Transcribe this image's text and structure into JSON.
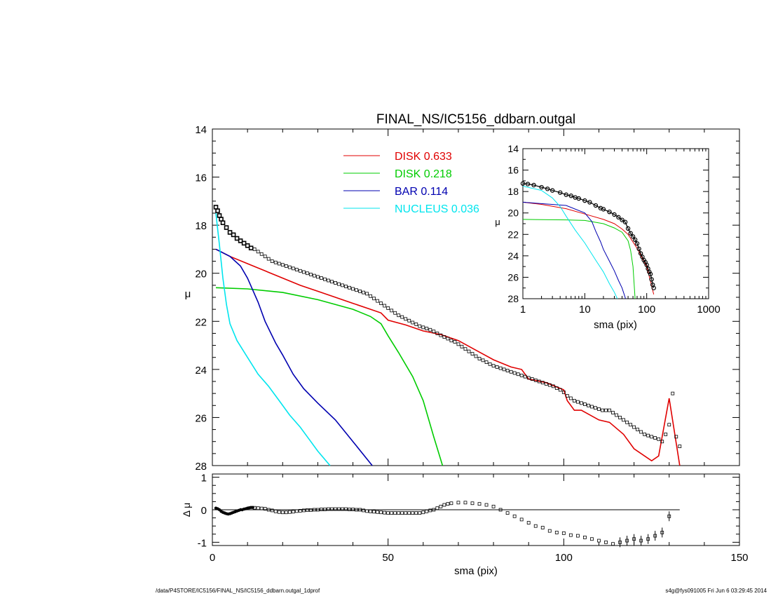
{
  "footer": {
    "left": "/data/P4STORE/IC5156/FINAL_NS/IC5156_ddbarn.outgal_1dprof",
    "right": "s4g@fys091005  Fri Jun  6 03:29:45 2014"
  },
  "chart_data": [
    {
      "id": "main",
      "type": "line",
      "title": "FINAL_NS/IC5156_ddbarn.outgal",
      "xlabel": "",
      "ylabel": "μ",
      "xlim": [
        0,
        150
      ],
      "ylim": [
        28,
        14
      ],
      "y_inverted": true,
      "yticks": [
        14,
        16,
        18,
        20,
        22,
        24,
        26,
        28
      ],
      "xticks": [
        0,
        50,
        100,
        150
      ],
      "show_x_tick_labels": false,
      "grid": false,
      "legend_position": "top-center",
      "legend": [
        {
          "name": "DISK",
          "value": "0.633",
          "color": "#e00000"
        },
        {
          "name": "DISK",
          "value": "0.218",
          "color": "#00cc00"
        },
        {
          "name": "BAR",
          "value": "0.114",
          "color": "#0000b0"
        },
        {
          "name": "NUCLEUS",
          "value": "0.036",
          "color": "#00e5ee"
        }
      ],
      "series": [
        {
          "name": "DISK",
          "color": "#e00000",
          "x": [
            1,
            5,
            10,
            15,
            20,
            25,
            30,
            35,
            40,
            45,
            48,
            50,
            55,
            60,
            65,
            70,
            75,
            80,
            85,
            88,
            90,
            95,
            100,
            101,
            103,
            105,
            110,
            113,
            117,
            120,
            125,
            127,
            130,
            133
          ],
          "y": [
            19.0,
            19.3,
            19.6,
            19.9,
            20.2,
            20.5,
            20.75,
            21.0,
            21.25,
            21.5,
            21.65,
            21.95,
            22.15,
            22.4,
            22.55,
            22.8,
            23.2,
            23.6,
            23.9,
            24.0,
            24.4,
            24.55,
            24.85,
            25.3,
            25.7,
            25.7,
            26.1,
            26.2,
            26.7,
            27.3,
            27.8,
            27.6,
            25.2,
            28.0
          ]
        },
        {
          "name": "DISK",
          "color": "#00cc00",
          "x": [
            1,
            10,
            20,
            30,
            40,
            45,
            48,
            50,
            53,
            57,
            60,
            63,
            65.5
          ],
          "y": [
            20.6,
            20.65,
            20.8,
            21.1,
            21.5,
            21.8,
            22.1,
            22.6,
            23.3,
            24.3,
            25.3,
            26.8,
            28.0
          ]
        },
        {
          "name": "BAR",
          "color": "#0000b0",
          "x": [
            1,
            5,
            8,
            10,
            13,
            15,
            18,
            20,
            23,
            26,
            30,
            35,
            40,
            45.5
          ],
          "y": [
            19.0,
            19.3,
            19.7,
            20.2,
            21.2,
            22.0,
            22.9,
            23.4,
            24.2,
            24.8,
            25.4,
            26.1,
            27.0,
            28.0
          ]
        },
        {
          "name": "NUCLEUS",
          "color": "#00e5ee",
          "x": [
            1,
            2,
            3,
            4,
            5,
            7,
            10,
            13,
            16,
            19,
            22,
            25,
            28,
            30,
            33.5
          ],
          "y": [
            17.5,
            18.8,
            20.2,
            21.3,
            22.1,
            22.8,
            23.5,
            24.2,
            24.7,
            25.3,
            25.9,
            26.4,
            27.0,
            27.4,
            28.0
          ]
        },
        {
          "name": "data",
          "color": "#000000",
          "marker": "square",
          "x": [
            1,
            1.5,
            2,
            2.5,
            3,
            4,
            5,
            6,
            7,
            8,
            9,
            10,
            11,
            12,
            13,
            14,
            15,
            16,
            17,
            18,
            19,
            20,
            21,
            22,
            23,
            24,
            25,
            26,
            27,
            28,
            29,
            30,
            31,
            32,
            33,
            34,
            35,
            36,
            37,
            38,
            39,
            40,
            41,
            42,
            43,
            44,
            45,
            46,
            47,
            48,
            49,
            50,
            51,
            52,
            53,
            54,
            55,
            56,
            57,
            58,
            59,
            60,
            61,
            62,
            63,
            64,
            65,
            66,
            67,
            68,
            69,
            70,
            71,
            72,
            73,
            74,
            75,
            76,
            77,
            78,
            79,
            80,
            81,
            82,
            83,
            84,
            85,
            86,
            87,
            88,
            89,
            90,
            91,
            92,
            93,
            94,
            95,
            96,
            97,
            98,
            99,
            100,
            101,
            102,
            103,
            104,
            105,
            106,
            107,
            108,
            109,
            110,
            111,
            112,
            113,
            114,
            115,
            116,
            117,
            118,
            119,
            120,
            121,
            122,
            123,
            124,
            125,
            126,
            127,
            128,
            129,
            130,
            131,
            132,
            133
          ],
          "y": [
            17.25,
            17.4,
            17.6,
            17.75,
            17.9,
            18.1,
            18.3,
            18.4,
            18.55,
            18.65,
            18.75,
            18.85,
            18.95,
            19.0,
            19.1,
            19.2,
            19.3,
            19.4,
            19.5,
            19.55,
            19.6,
            19.65,
            19.7,
            19.75,
            19.8,
            19.85,
            19.9,
            19.95,
            20.0,
            20.05,
            20.1,
            20.15,
            20.2,
            20.25,
            20.3,
            20.35,
            20.4,
            20.45,
            20.5,
            20.55,
            20.6,
            20.65,
            20.7,
            20.75,
            20.8,
            20.85,
            20.95,
            21.05,
            21.15,
            21.25,
            21.35,
            21.45,
            21.55,
            21.65,
            21.75,
            21.82,
            21.9,
            21.97,
            22.05,
            22.12,
            22.2,
            22.25,
            22.3,
            22.35,
            22.42,
            22.5,
            22.58,
            22.65,
            22.72,
            22.8,
            22.85,
            22.95,
            23.05,
            23.15,
            23.25,
            23.35,
            23.45,
            23.55,
            23.62,
            23.7,
            23.78,
            23.85,
            23.9,
            23.95,
            24.0,
            24.05,
            24.1,
            24.15,
            24.2,
            24.25,
            24.3,
            24.35,
            24.4,
            24.45,
            24.5,
            24.55,
            24.6,
            24.65,
            24.7,
            24.78,
            24.85,
            24.95,
            25.1,
            25.2,
            25.3,
            25.35,
            25.4,
            25.45,
            25.5,
            25.55,
            25.6,
            25.65,
            25.7,
            25.7,
            25.7,
            25.8,
            25.9,
            26.0,
            26.1,
            26.2,
            26.3,
            26.4,
            26.5,
            26.6,
            26.7,
            26.75,
            26.8,
            26.85,
            26.9,
            27.0,
            26.7,
            26.3,
            25.0,
            26.8,
            27.2
          ]
        }
      ]
    },
    {
      "id": "inset",
      "type": "line",
      "title": "",
      "xlabel": "sma (pix)",
      "ylabel": "μ",
      "xscale": "log",
      "xlim": [
        1,
        1000
      ],
      "ylim": [
        28,
        14
      ],
      "y_inverted": true,
      "xticks": [
        1,
        10,
        100,
        1000
      ],
      "yticks": [
        14,
        16,
        18,
        20,
        22,
        24,
        26,
        28
      ],
      "series": [
        {
          "name": "DISK",
          "color": "#e00000",
          "x": [
            1,
            2,
            5,
            10,
            20,
            30,
            40,
            50,
            70,
            100,
            130
          ],
          "y": [
            19.0,
            19.2,
            19.6,
            20.1,
            20.6,
            21.0,
            21.5,
            22.0,
            23.3,
            25.0,
            27.6
          ]
        },
        {
          "name": "DISK",
          "color": "#00cc00",
          "x": [
            1,
            5,
            10,
            20,
            30,
            40,
            50,
            55,
            60,
            65
          ],
          "y": [
            20.6,
            20.65,
            20.7,
            21.0,
            21.4,
            21.8,
            22.6,
            23.5,
            25.0,
            28.0
          ]
        },
        {
          "name": "BAR",
          "color": "#0000b0",
          "x": [
            1,
            5,
            10,
            13,
            15,
            18,
            20,
            25,
            30,
            35,
            40,
            45.5
          ],
          "y": [
            19.0,
            19.3,
            20.0,
            20.8,
            21.7,
            22.7,
            23.4,
            24.5,
            25.4,
            26.3,
            27.0,
            28.0
          ]
        },
        {
          "name": "NUCLEUS",
          "color": "#00e5ee",
          "x": [
            1,
            2,
            3,
            4,
            5,
            7,
            10,
            15,
            20,
            25,
            30,
            33.5
          ],
          "y": [
            17.5,
            17.9,
            18.6,
            19.4,
            20.3,
            21.6,
            22.8,
            24.4,
            25.5,
            26.6,
            27.4,
            28.0
          ]
        },
        {
          "name": "data",
          "color": "#000000",
          "marker": "circle",
          "x": [
            1,
            1.2,
            1.5,
            2,
            2.5,
            3,
            4,
            5,
            6,
            7,
            8,
            10,
            12,
            15,
            18,
            20,
            25,
            30,
            35,
            40,
            45,
            50,
            55,
            60,
            65,
            70,
            75,
            80,
            85,
            90,
            95,
            100,
            105,
            110,
            115,
            120,
            125,
            130
          ],
          "y": [
            17.25,
            17.3,
            17.4,
            17.6,
            17.75,
            17.9,
            18.1,
            18.3,
            18.4,
            18.55,
            18.65,
            18.85,
            19.0,
            19.3,
            19.55,
            19.65,
            19.9,
            20.15,
            20.4,
            20.65,
            20.85,
            21.45,
            21.9,
            22.2,
            22.5,
            22.85,
            23.35,
            23.78,
            24.1,
            24.4,
            24.6,
            24.85,
            25.2,
            25.5,
            25.7,
            26.2,
            26.7,
            27.0
          ]
        }
      ]
    },
    {
      "id": "residual",
      "type": "scatter",
      "title": "",
      "xlabel": "sma (pix)",
      "ylabel": "Δ μ",
      "xlim": [
        0,
        150
      ],
      "ylim": [
        -1.1,
        1.1
      ],
      "xticks": [
        0,
        50,
        100,
        150
      ],
      "yticks": [
        -1,
        0,
        1
      ],
      "zero_line": true,
      "series": [
        {
          "name": "residual",
          "color": "#000000",
          "marker": "square",
          "x": [
            1,
            1.5,
            2,
            2.5,
            3,
            3.5,
            4,
            4.5,
            5,
            5.5,
            6,
            6.5,
            7,
            7.5,
            8,
            8.5,
            9,
            9.5,
            10,
            10.5,
            11,
            11.5,
            12,
            13,
            14,
            15,
            16,
            17,
            18,
            19,
            20,
            21,
            22,
            23,
            24,
            25,
            26,
            27,
            28,
            29,
            30,
            31,
            32,
            33,
            34,
            35,
            36,
            37,
            38,
            39,
            40,
            41,
            42,
            43,
            44,
            45,
            46,
            47,
            48,
            49,
            50,
            51,
            52,
            53,
            54,
            55,
            56,
            57,
            58,
            59,
            60,
            61,
            62,
            63,
            64,
            65,
            66,
            67,
            68,
            70,
            72,
            74,
            76,
            78,
            80,
            82,
            84,
            86,
            88,
            90,
            92,
            94,
            96,
            98,
            100,
            102,
            104,
            106,
            108,
            110,
            112,
            114,
            116,
            118,
            120,
            122,
            124,
            126,
            128,
            130
          ],
          "y": [
            0.05,
            0.03,
            0.0,
            -0.05,
            -0.08,
            -0.1,
            -0.12,
            -0.13,
            -0.12,
            -0.1,
            -0.08,
            -0.06,
            -0.04,
            -0.02,
            0.0,
            0.0,
            0.02,
            0.03,
            0.05,
            0.06,
            0.07,
            0.07,
            0.06,
            0.05,
            0.04,
            0.03,
            0.0,
            -0.02,
            -0.05,
            -0.07,
            -0.08,
            -0.08,
            -0.07,
            -0.06,
            -0.04,
            -0.03,
            -0.02,
            -0.01,
            -0.01,
            0.0,
            0.0,
            0.01,
            0.01,
            0.02,
            0.02,
            0.02,
            0.02,
            0.02,
            0.02,
            0.01,
            0.01,
            0.0,
            0.0,
            -0.02,
            -0.04,
            -0.05,
            -0.06,
            -0.07,
            -0.08,
            -0.09,
            -0.1,
            -0.1,
            -0.1,
            -0.1,
            -0.1,
            -0.1,
            -0.1,
            -0.1,
            -0.1,
            -0.1,
            -0.08,
            -0.05,
            -0.02,
            0.0,
            0.05,
            0.1,
            0.15,
            0.18,
            0.2,
            0.22,
            0.22,
            0.2,
            0.18,
            0.15,
            0.1,
            0.0,
            -0.1,
            -0.2,
            -0.3,
            -0.4,
            -0.5,
            -0.55,
            -0.65,
            -0.7,
            -0.72,
            -0.78,
            -0.8,
            -0.85,
            -0.9,
            -0.95,
            -1.0,
            -1.05,
            -1.0,
            -0.95,
            -0.9,
            -0.95,
            -0.9,
            -0.8,
            -0.7,
            -0.2
          ],
          "error_bars": true
        }
      ]
    }
  ]
}
